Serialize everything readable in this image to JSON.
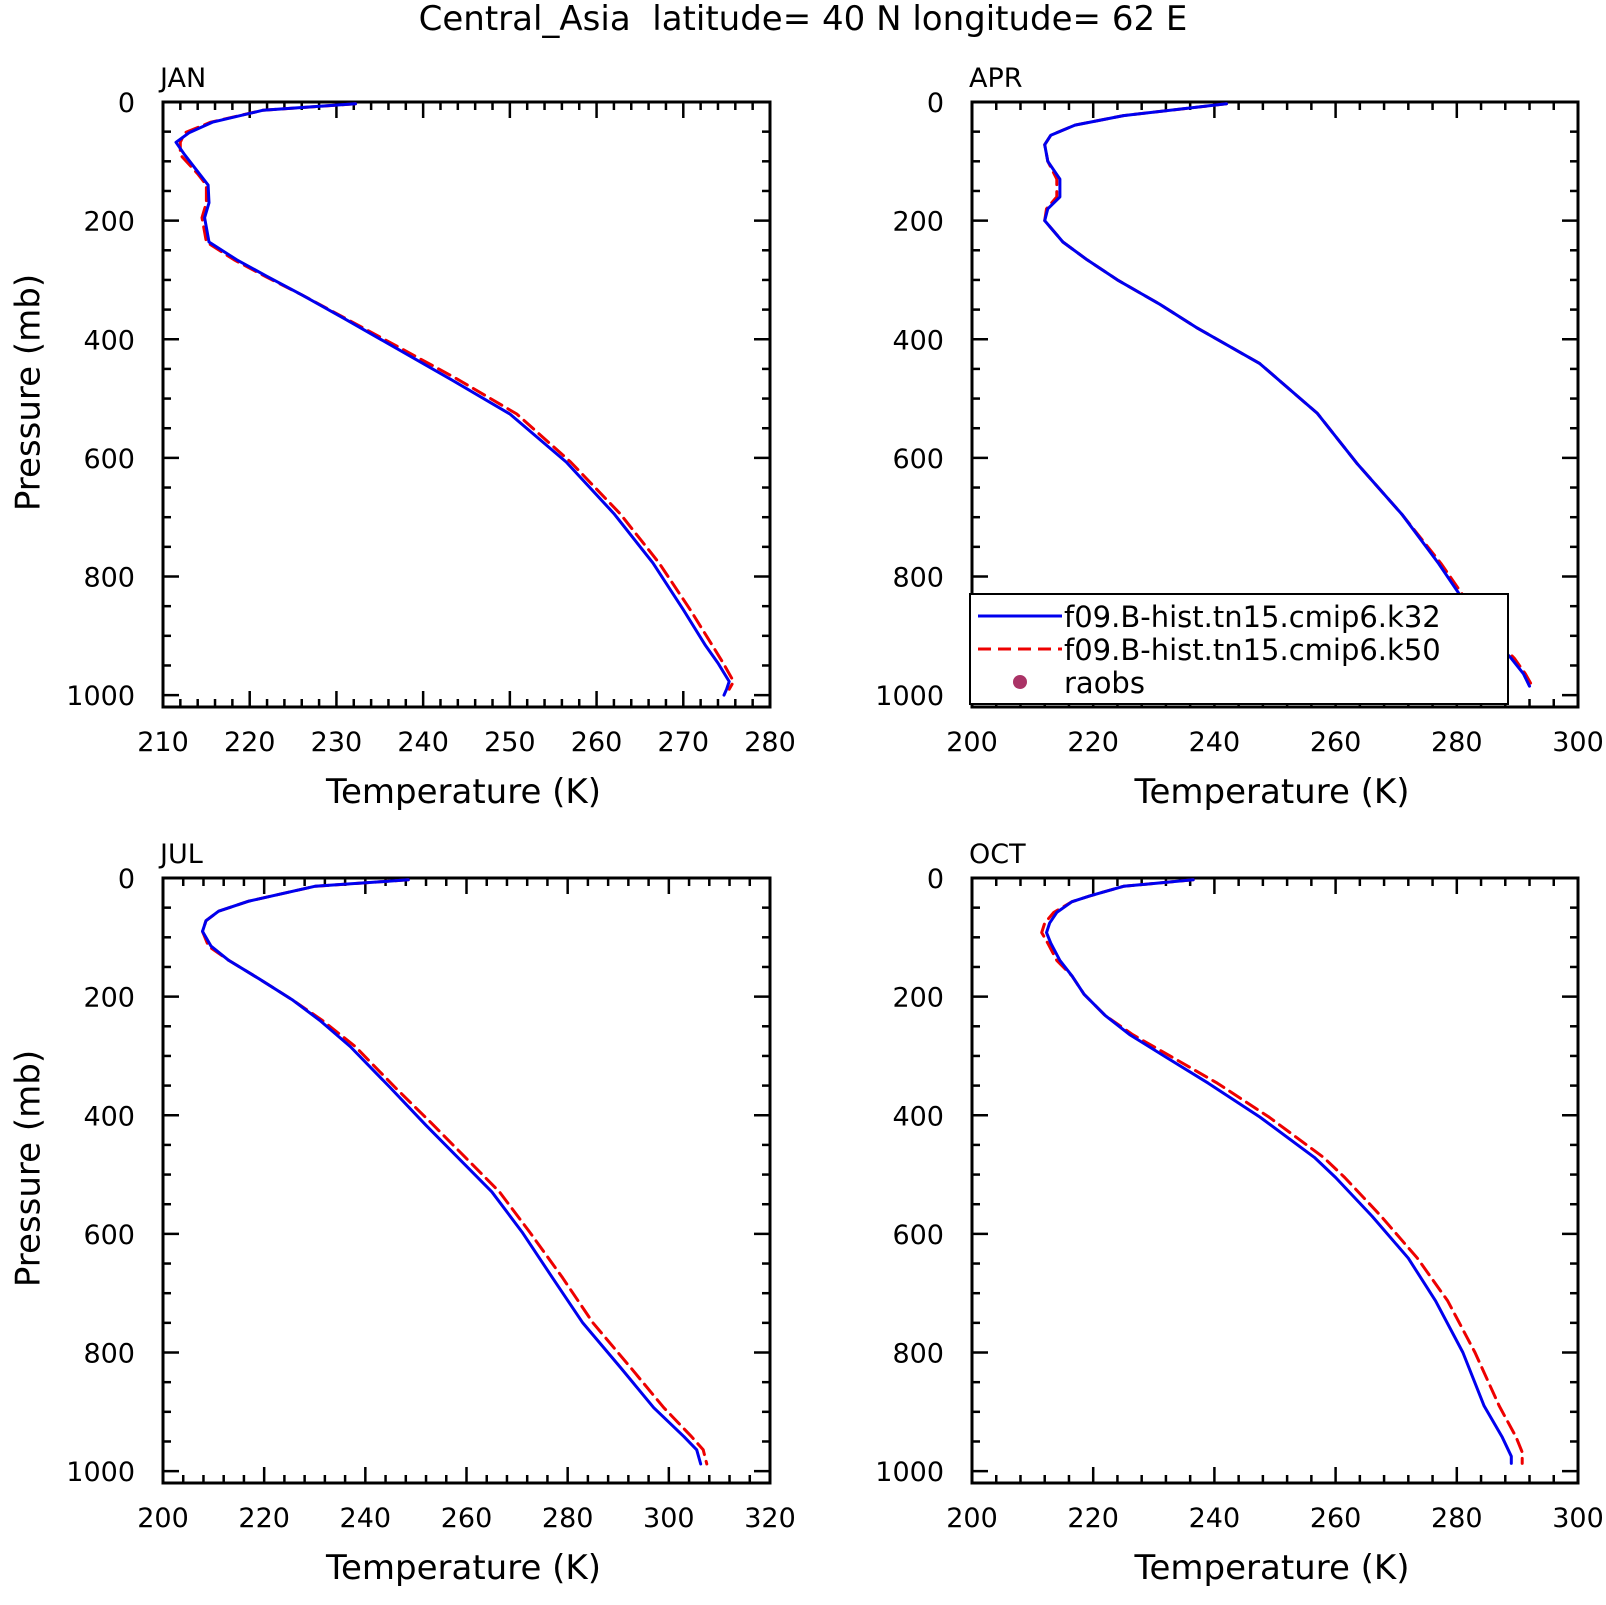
{
  "title": "Central_Asia  latitude= 40 N longitude= 62 E",
  "chart_data": {
    "type": "line",
    "title": "Central_Asia  latitude= 40 N longitude= 62 E",
    "series_names": [
      "f09.B-hist.tn15.cmip6.k32",
      "f09.B-hist.tn15.cmip6.k50",
      "raobs"
    ],
    "series_colors": [
      "#0000ee",
      "#ee0000",
      "#aa3366"
    ],
    "legend": {
      "placement": "APR panel lower-left",
      "entries": [
        {
          "label": "f09.B-hist.tn15.cmip6.k32",
          "style": "solid"
        },
        {
          "label": "f09.B-hist.tn15.cmip6.k50",
          "style": "dashed"
        },
        {
          "label": "raobs",
          "style": "dot"
        }
      ]
    },
    "panels": [
      {
        "name": "JAN",
        "xlabel": "Temperature (K)",
        "ylabel": "Pressure (mb)",
        "xlim": [
          210,
          280
        ],
        "ylim": [
          1020,
          0
        ],
        "xticks": [
          210,
          220,
          230,
          240,
          250,
          260,
          270,
          280
        ],
        "yticks": [
          0,
          200,
          400,
          600,
          800,
          1000
        ],
        "series": [
          {
            "name": "f09.B-hist.tn15.cmip6.k32",
            "points": [
              [
                232.2,
                3
              ],
              [
                221.5,
                14
              ],
              [
                215.7,
                34
              ],
              [
                213.0,
                52
              ],
              [
                211.5,
                68
              ],
              [
                212.5,
                89
              ],
              [
                214.2,
                121
              ],
              [
                215.2,
                140
              ],
              [
                215.3,
                170
              ],
              [
                214.8,
                195
              ],
              [
                215.3,
                236
              ],
              [
                218.5,
                266
              ],
              [
                222.0,
                294
              ],
              [
                226.0,
                325
              ],
              [
                231.0,
                366
              ],
              [
                237.0,
                416
              ],
              [
                243.0,
                466
              ],
              [
                250.0,
                526
              ],
              [
                256.5,
                607
              ],
              [
                262.0,
                694
              ],
              [
                266.5,
                777
              ],
              [
                270.0,
                856
              ],
              [
                272.5,
                915
              ],
              [
                274.0,
                946
              ],
              [
                275.3,
                977
              ],
              [
                275.0,
                990
              ],
              [
                274.7,
                1000
              ]
            ]
          },
          {
            "name": "f09.B-hist.tn15.cmip6.k50",
            "points": [
              [
                232.2,
                3
              ],
              [
                221.5,
                14
              ],
              [
                215.5,
                34
              ],
              [
                212.5,
                52
              ],
              [
                212.0,
                68
              ],
              [
                212.0,
                89
              ],
              [
                214.0,
                121
              ],
              [
                215.0,
                140
              ],
              [
                215.0,
                170
              ],
              [
                214.5,
                195
              ],
              [
                215.0,
                236
              ],
              [
                218.2,
                266
              ],
              [
                221.8,
                294
              ],
              [
                226.0,
                325
              ],
              [
                231.2,
                366
              ],
              [
                237.5,
                416
              ],
              [
                243.8,
                466
              ],
              [
                250.8,
                526
              ],
              [
                257.0,
                607
              ],
              [
                262.7,
                694
              ],
              [
                267.2,
                777
              ],
              [
                270.8,
                856
              ],
              [
                273.3,
                915
              ],
              [
                274.6,
                946
              ],
              [
                275.8,
                977
              ],
              [
                275.3,
                990
              ]
            ]
          }
        ]
      },
      {
        "name": "APR",
        "xlabel": "Temperature (K)",
        "ylabel": "",
        "xlim": [
          200,
          300
        ],
        "ylim": [
          1020,
          0
        ],
        "xticks": [
          200,
          220,
          240,
          260,
          280,
          300
        ],
        "yticks": [
          0,
          200,
          400,
          600,
          800,
          1000
        ],
        "series": [
          {
            "name": "f09.B-hist.tn15.cmip6.k32",
            "points": [
              [
                242.0,
                3
              ],
              [
                225.0,
                23
              ],
              [
                217.0,
                39
              ],
              [
                213.0,
                56
              ],
              [
                212.0,
                72
              ],
              [
                212.5,
                100
              ],
              [
                214.5,
                130
              ],
              [
                214.5,
                160
              ],
              [
                212.5,
                180
              ],
              [
                212.0,
                200
              ],
              [
                215.0,
                236
              ],
              [
                219.0,
                266
              ],
              [
                224.0,
                300
              ],
              [
                231.0,
                341
              ],
              [
                237.0,
                380
              ],
              [
                247.5,
                441
              ],
              [
                257.0,
                525
              ],
              [
                263.5,
                609
              ],
              [
                271.0,
                696
              ],
              [
                277.0,
                778
              ],
              [
                281.5,
                846
              ],
              [
                286.0,
                906
              ],
              [
                289.0,
                938
              ],
              [
                291.0,
                964
              ],
              [
                292.0,
                985
              ]
            ]
          },
          {
            "name": "f09.B-hist.tn15.cmip6.k50",
            "points": [
              [
                242.0,
                3
              ],
              [
                225.0,
                23
              ],
              [
                217.0,
                39
              ],
              [
                213.0,
                56
              ],
              [
                212.0,
                72
              ],
              [
                212.5,
                100
              ],
              [
                214.0,
                130
              ],
              [
                214.0,
                160
              ],
              [
                212.3,
                180
              ],
              [
                212.0,
                200
              ],
              [
                215.0,
                236
              ],
              [
                219.0,
                266
              ],
              [
                224.0,
                300
              ],
              [
                231.0,
                341
              ],
              [
                237.0,
                380
              ],
              [
                247.5,
                441
              ],
              [
                257.0,
                525
              ],
              [
                263.5,
                609
              ],
              [
                271.0,
                696
              ],
              [
                277.4,
                778
              ],
              [
                282.0,
                846
              ],
              [
                286.5,
                906
              ],
              [
                289.5,
                938
              ],
              [
                291.3,
                964
              ],
              [
                292.2,
                980
              ]
            ]
          }
        ]
      },
      {
        "name": "JUL",
        "xlabel": "Temperature (K)",
        "ylabel": "Pressure (mb)",
        "xlim": [
          200,
          320
        ],
        "ylim": [
          1020,
          0
        ],
        "xticks": [
          200,
          220,
          240,
          260,
          280,
          300,
          320
        ],
        "yticks": [
          0,
          200,
          400,
          600,
          800,
          1000
        ],
        "series": [
          {
            "name": "f09.B-hist.tn15.cmip6.k32",
            "points": [
              [
                248.5,
                3
              ],
              [
                230.0,
                14
              ],
              [
                217.0,
                39
              ],
              [
                211.0,
                56
              ],
              [
                208.5,
                72
              ],
              [
                207.8,
                90
              ],
              [
                209.5,
                115
              ],
              [
                213.0,
                139
              ],
              [
                219.0,
                170
              ],
              [
                225.5,
                205
              ],
              [
                231.0,
                240
              ],
              [
                237.0,
                284
              ],
              [
                245.0,
                354
              ],
              [
                252.0,
                417
              ],
              [
                258.5,
                473
              ],
              [
                265.0,
                529
              ],
              [
                271.0,
                597
              ],
              [
                277.0,
                674
              ],
              [
                283.0,
                750
              ],
              [
                290.5,
                826
              ],
              [
                297.0,
                893
              ],
              [
                303.0,
                942
              ],
              [
                305.5,
                964
              ],
              [
                306.3,
                988
              ]
            ]
          },
          {
            "name": "f09.B-hist.tn15.cmip6.k50",
            "points": [
              [
                248.5,
                3
              ],
              [
                230.0,
                14
              ],
              [
                217.0,
                39
              ],
              [
                211.0,
                56
              ],
              [
                208.5,
                72
              ],
              [
                207.8,
                90
              ],
              [
                209.0,
                115
              ],
              [
                213.0,
                139
              ],
              [
                219.0,
                170
              ],
              [
                225.5,
                205
              ],
              [
                231.5,
                240
              ],
              [
                238.0,
                284
              ],
              [
                246.0,
                354
              ],
              [
                253.5,
                417
              ],
              [
                260.0,
                473
              ],
              [
                266.5,
                529
              ],
              [
                272.5,
                597
              ],
              [
                279.0,
                674
              ],
              [
                285.0,
                750
              ],
              [
                292.5,
                826
              ],
              [
                299.0,
                893
              ],
              [
                304.5,
                942
              ],
              [
                306.8,
                964
              ],
              [
                307.5,
                988
              ]
            ]
          }
        ]
      },
      {
        "name": "OCT",
        "xlabel": "Temperature (K)",
        "ylabel": "",
        "xlim": [
          200,
          300
        ],
        "ylim": [
          1020,
          0
        ],
        "xticks": [
          200,
          220,
          240,
          260,
          280,
          300
        ],
        "yticks": [
          0,
          200,
          400,
          600,
          800,
          1000
        ],
        "series": [
          {
            "name": "f09.B-hist.tn15.cmip6.k32",
            "points": [
              [
                236.5,
                3
              ],
              [
                225.0,
                14
              ],
              [
                219.5,
                30
              ],
              [
                216.5,
                40
              ],
              [
                214.0,
                58
              ],
              [
                212.8,
                76
              ],
              [
                212.3,
                92
              ],
              [
                213.0,
                110
              ],
              [
                214.5,
                139
              ],
              [
                216.5,
                165
              ],
              [
                218.5,
                196
              ],
              [
                222.0,
                232
              ],
              [
                226.0,
                264
              ],
              [
                232.0,
                302
              ],
              [
                239.0,
                346
              ],
              [
                247.5,
                403
              ],
              [
                256.5,
                471
              ],
              [
                260.0,
                505
              ],
              [
                266.0,
                570
              ],
              [
                272.0,
                641
              ],
              [
                276.5,
                713
              ],
              [
                281.0,
                800
              ],
              [
                284.5,
                890
              ],
              [
                287.5,
                943
              ],
              [
                289.0,
                975
              ],
              [
                289.0,
                987
              ]
            ]
          },
          {
            "name": "f09.B-hist.tn15.cmip6.k50",
            "points": [
              [
                236.5,
                3
              ],
              [
                225.0,
                14
              ],
              [
                219.5,
                30
              ],
              [
                216.5,
                40
              ],
              [
                213.5,
                58
              ],
              [
                212.0,
                76
              ],
              [
                211.5,
                92
              ],
              [
                212.5,
                110
              ],
              [
                214.0,
                139
              ],
              [
                216.5,
                165
              ],
              [
                218.5,
                196
              ],
              [
                222.0,
                232
              ],
              [
                226.5,
                264
              ],
              [
                233.0,
                302
              ],
              [
                240.5,
                346
              ],
              [
                249.0,
                403
              ],
              [
                258.0,
                471
              ],
              [
                261.5,
                505
              ],
              [
                267.5,
                570
              ],
              [
                273.5,
                641
              ],
              [
                278.5,
                713
              ],
              [
                283.0,
                800
              ],
              [
                287.0,
                890
              ],
              [
                289.8,
                943
              ],
              [
                290.8,
                968
              ],
              [
                290.8,
                987
              ]
            ]
          }
        ]
      }
    ]
  }
}
